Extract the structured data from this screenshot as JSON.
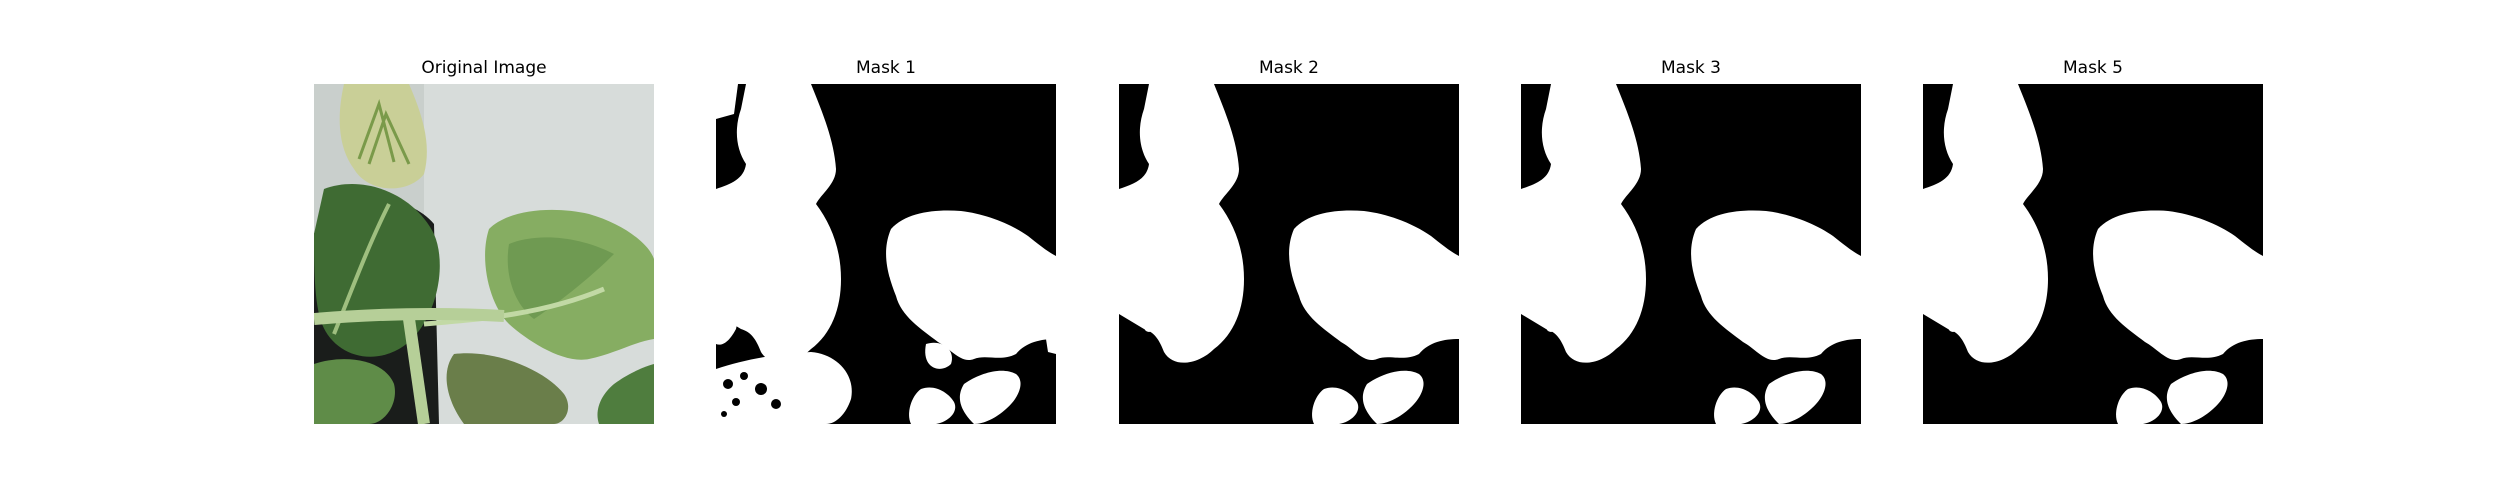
{
  "figure": {
    "panels": [
      {
        "title": "Original Image",
        "kind": "photo"
      },
      {
        "title": "Mask 1",
        "kind": "mask",
        "variant": "noisy"
      },
      {
        "title": "Mask 2",
        "kind": "mask",
        "variant": "clean"
      },
      {
        "title": "Mask 3",
        "kind": "mask",
        "variant": "clean"
      },
      {
        "title": "Mask 5",
        "kind": "mask",
        "variant": "clean"
      }
    ]
  },
  "colors": {
    "background": "#ffffff",
    "mask_background": "#000000",
    "mask_foreground": "#ffffff",
    "wall": "#d7dcda",
    "leaf_dark": "#3f6b33",
    "leaf_mid": "#5f8c48",
    "leaf_light": "#86ad62",
    "stem": "#b6cf98",
    "pot": "#1a1d1b",
    "bud": "#c9cf97"
  }
}
